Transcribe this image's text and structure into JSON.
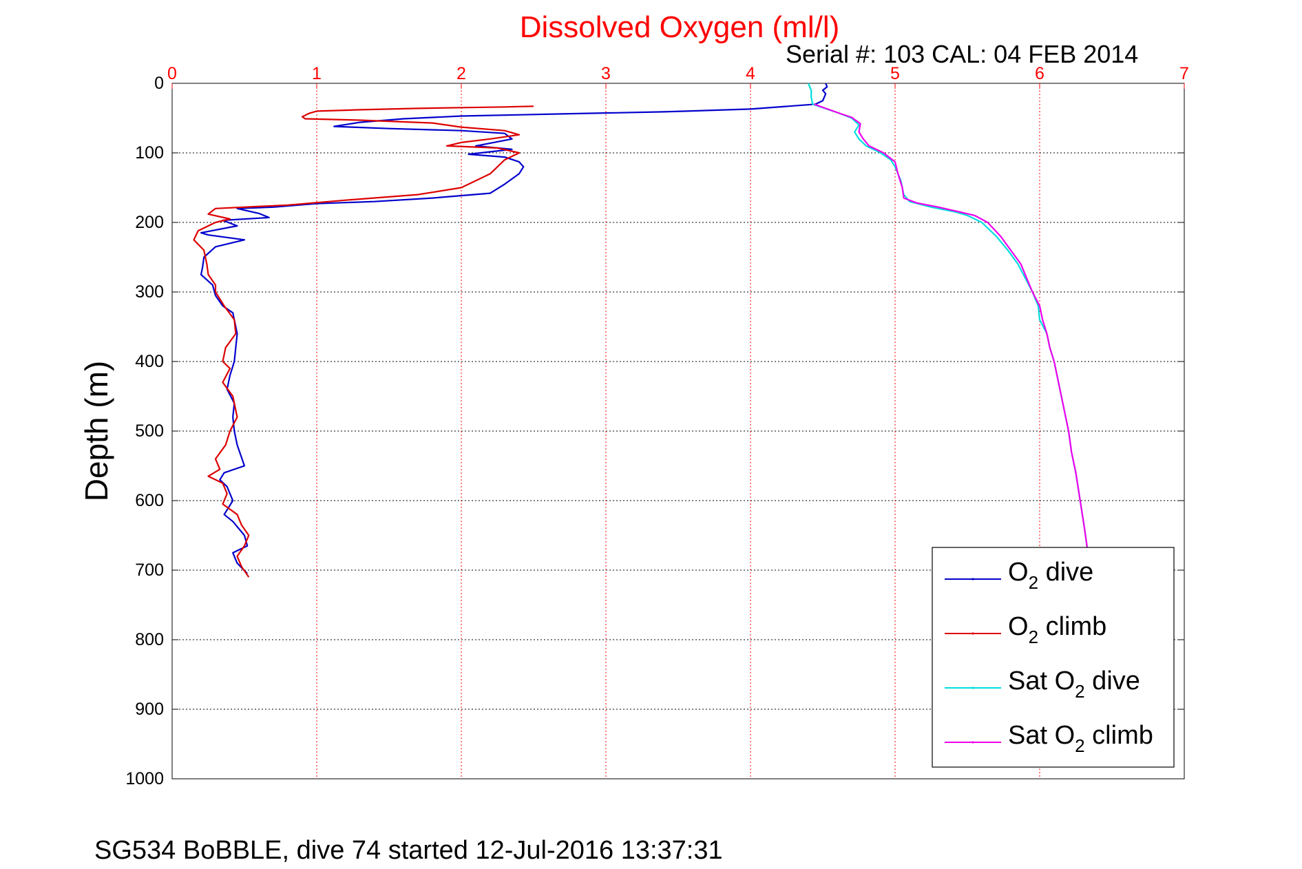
{
  "chart_data": {
    "type": "line",
    "title": "Dissolved Oxygen (ml/l)",
    "subtitle": "Serial #: 103  CAL: 04 FEB 2014",
    "xlabel": "Dissolved Oxygen (ml/l)",
    "ylabel": "Depth (m)",
    "footer": "SG534 BoBBLE, dive 74 started 12-Jul-2016 13:37:31",
    "xlim": [
      0,
      7
    ],
    "ylim": [
      0,
      1000
    ],
    "y_reversed": true,
    "x_axis_position": "top",
    "xticks": [
      "0",
      "1",
      "2",
      "3",
      "4",
      "5",
      "6",
      "7"
    ],
    "yticks": [
      "0",
      "100",
      "200",
      "300",
      "400",
      "500",
      "600",
      "700",
      "800",
      "900",
      "1000"
    ],
    "xgrid_color": "#ff0000",
    "ygrid_color": "#000000",
    "grid": true,
    "legend_position": "bottom-right",
    "series": [
      {
        "name": "O2 dive",
        "label_main": "O",
        "label_sub": "2",
        "label_rest": " dive",
        "color": "#0000cc",
        "points": [
          [
            4.52,
            0
          ],
          [
            4.53,
            5
          ],
          [
            4.5,
            10
          ],
          [
            4.52,
            15
          ],
          [
            4.5,
            25
          ],
          [
            4.45,
            30
          ],
          [
            4.0,
            37
          ],
          [
            3.4,
            41
          ],
          [
            2.7,
            44
          ],
          [
            2.0,
            47
          ],
          [
            1.6,
            51
          ],
          [
            1.3,
            56
          ],
          [
            1.12,
            62
          ],
          [
            1.5,
            65
          ],
          [
            2.0,
            68
          ],
          [
            2.3,
            72
          ],
          [
            2.35,
            80
          ],
          [
            2.2,
            86
          ],
          [
            2.1,
            90
          ],
          [
            2.35,
            95
          ],
          [
            2.05,
            102
          ],
          [
            2.3,
            106
          ],
          [
            2.4,
            113
          ],
          [
            2.43,
            120
          ],
          [
            2.4,
            130
          ],
          [
            2.3,
            145
          ],
          [
            2.2,
            158
          ],
          [
            1.8,
            165
          ],
          [
            1.4,
            170
          ],
          [
            1.0,
            173
          ],
          [
            0.7,
            178
          ],
          [
            0.45,
            180
          ],
          [
            0.6,
            187
          ],
          [
            0.67,
            193
          ],
          [
            0.35,
            197
          ],
          [
            0.45,
            205
          ],
          [
            0.2,
            215
          ],
          [
            0.25,
            218
          ],
          [
            0.5,
            225
          ],
          [
            0.4,
            230
          ],
          [
            0.3,
            235
          ],
          [
            0.22,
            250
          ],
          [
            0.21,
            265
          ],
          [
            0.2,
            275
          ],
          [
            0.28,
            290
          ],
          [
            0.3,
            305
          ],
          [
            0.35,
            320
          ],
          [
            0.42,
            330
          ],
          [
            0.43,
            340
          ],
          [
            0.45,
            360
          ],
          [
            0.44,
            380
          ],
          [
            0.43,
            400
          ],
          [
            0.4,
            420
          ],
          [
            0.38,
            440
          ],
          [
            0.43,
            460
          ],
          [
            0.42,
            480
          ],
          [
            0.43,
            500
          ],
          [
            0.45,
            520
          ],
          [
            0.5,
            550
          ],
          [
            0.36,
            560
          ],
          [
            0.33,
            570
          ],
          [
            0.38,
            580
          ],
          [
            0.42,
            600
          ],
          [
            0.36,
            620
          ],
          [
            0.42,
            630
          ],
          [
            0.5,
            650
          ],
          [
            0.52,
            665
          ],
          [
            0.42,
            675
          ],
          [
            0.45,
            690
          ],
          [
            0.52,
            705
          ]
        ]
      },
      {
        "name": "O2 climb",
        "label_main": "O",
        "label_sub": "2",
        "label_rest": " climb",
        "color": "#dd0000",
        "points": [
          [
            2.5,
            33
          ],
          [
            2.3,
            34
          ],
          [
            2.0,
            35
          ],
          [
            1.7,
            36
          ],
          [
            1.3,
            38
          ],
          [
            1.0,
            40
          ],
          [
            0.95,
            43
          ],
          [
            0.9,
            48
          ],
          [
            0.92,
            51
          ],
          [
            1.3,
            53
          ],
          [
            1.8,
            57
          ],
          [
            2.0,
            63
          ],
          [
            2.3,
            68
          ],
          [
            2.4,
            74
          ],
          [
            2.2,
            80
          ],
          [
            2.0,
            85
          ],
          [
            1.9,
            90
          ],
          [
            2.25,
            93
          ],
          [
            2.4,
            100
          ],
          [
            2.3,
            110
          ],
          [
            2.2,
            130
          ],
          [
            2.0,
            150
          ],
          [
            1.7,
            160
          ],
          [
            1.2,
            168
          ],
          [
            0.8,
            175
          ],
          [
            0.3,
            180
          ],
          [
            0.25,
            188
          ],
          [
            0.4,
            195
          ],
          [
            0.3,
            200
          ],
          [
            0.18,
            212
          ],
          [
            0.15,
            225
          ],
          [
            0.22,
            240
          ],
          [
            0.24,
            260
          ],
          [
            0.25,
            275
          ],
          [
            0.3,
            290
          ],
          [
            0.3,
            300
          ],
          [
            0.36,
            320
          ],
          [
            0.43,
            340
          ],
          [
            0.44,
            360
          ],
          [
            0.37,
            380
          ],
          [
            0.35,
            400
          ],
          [
            0.4,
            410
          ],
          [
            0.35,
            430
          ],
          [
            0.42,
            450
          ],
          [
            0.45,
            480
          ],
          [
            0.4,
            500
          ],
          [
            0.37,
            520
          ],
          [
            0.3,
            540
          ],
          [
            0.33,
            555
          ],
          [
            0.25,
            565
          ],
          [
            0.35,
            575
          ],
          [
            0.38,
            590
          ],
          [
            0.35,
            605
          ],
          [
            0.45,
            620
          ],
          [
            0.48,
            635
          ],
          [
            0.53,
            650
          ],
          [
            0.5,
            665
          ],
          [
            0.45,
            680
          ],
          [
            0.48,
            695
          ],
          [
            0.53,
            710
          ]
        ]
      },
      {
        "name": "Sat O2 dive",
        "label_main": "Sat O",
        "label_sub": "2",
        "label_rest": " dive",
        "color": "#00dddd",
        "points": [
          [
            4.4,
            0
          ],
          [
            4.42,
            10
          ],
          [
            4.42,
            20
          ],
          [
            4.43,
            30
          ],
          [
            4.5,
            35
          ],
          [
            4.6,
            42
          ],
          [
            4.7,
            50
          ],
          [
            4.75,
            60
          ],
          [
            4.72,
            70
          ],
          [
            4.75,
            80
          ],
          [
            4.8,
            90
          ],
          [
            4.9,
            100
          ],
          [
            4.97,
            110
          ],
          [
            5.0,
            120
          ],
          [
            5.04,
            140
          ],
          [
            5.06,
            160
          ],
          [
            5.1,
            170
          ],
          [
            5.25,
            178
          ],
          [
            5.42,
            185
          ],
          [
            5.5,
            190
          ],
          [
            5.6,
            200
          ],
          [
            5.7,
            220
          ],
          [
            5.78,
            240
          ],
          [
            5.85,
            260
          ],
          [
            5.9,
            280
          ],
          [
            5.95,
            300
          ],
          [
            5.99,
            320
          ],
          [
            6.0,
            340
          ],
          [
            6.05,
            360
          ],
          [
            6.07,
            380
          ],
          [
            6.1,
            400
          ],
          [
            6.12,
            420
          ],
          [
            6.15,
            450
          ],
          [
            6.18,
            480
          ],
          [
            6.2,
            500
          ],
          [
            6.22,
            530
          ],
          [
            6.25,
            560
          ],
          [
            6.28,
            600
          ],
          [
            6.31,
            640
          ],
          [
            6.33,
            670
          ]
        ]
      },
      {
        "name": "Sat O2 climb",
        "label_main": "Sat O",
        "label_sub": "2",
        "label_rest": " climb",
        "color": "#ee00ee",
        "points": [
          [
            4.44,
            30
          ],
          [
            4.52,
            36
          ],
          [
            4.6,
            42
          ],
          [
            4.7,
            49
          ],
          [
            4.76,
            58
          ],
          [
            4.75,
            70
          ],
          [
            4.78,
            80
          ],
          [
            4.82,
            90
          ],
          [
            4.92,
            100
          ],
          [
            5.0,
            113
          ],
          [
            5.02,
            130
          ],
          [
            5.05,
            150
          ],
          [
            5.06,
            165
          ],
          [
            5.15,
            172
          ],
          [
            5.3,
            178
          ],
          [
            5.45,
            185
          ],
          [
            5.55,
            190
          ],
          [
            5.64,
            200
          ],
          [
            5.73,
            220
          ],
          [
            5.8,
            240
          ],
          [
            5.87,
            260
          ],
          [
            5.91,
            280
          ],
          [
            5.95,
            300
          ],
          [
            6.0,
            320
          ],
          [
            6.02,
            340
          ],
          [
            6.05,
            360
          ],
          [
            6.07,
            380
          ],
          [
            6.1,
            400
          ],
          [
            6.12,
            420
          ],
          [
            6.15,
            450
          ],
          [
            6.18,
            480
          ],
          [
            6.2,
            500
          ],
          [
            6.22,
            530
          ],
          [
            6.25,
            560
          ],
          [
            6.28,
            600
          ],
          [
            6.31,
            640
          ],
          [
            6.33,
            670
          ]
        ]
      }
    ]
  }
}
